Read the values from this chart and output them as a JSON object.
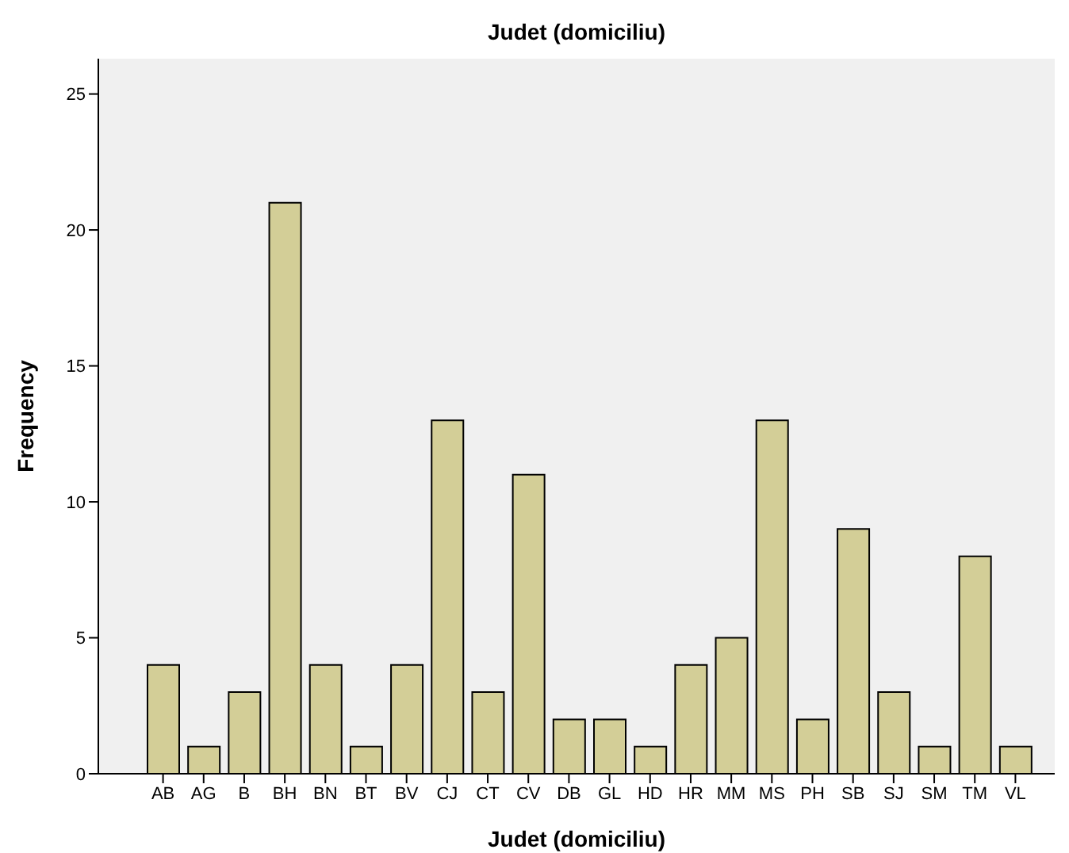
{
  "chart_data": {
    "type": "bar",
    "title": "Judet (domiciliu)",
    "xlabel": "Judet (domiciliu)",
    "ylabel": "Frequency",
    "categories": [
      "AB",
      "AG",
      "B",
      "BH",
      "BN",
      "BT",
      "BV",
      "CJ",
      "CT",
      "CV",
      "DB",
      "GL",
      "HD",
      "HR",
      "MM",
      "MS",
      "PH",
      "SB",
      "SJ",
      "SM",
      "TM",
      "VL"
    ],
    "values": [
      4,
      1,
      3,
      21,
      4,
      1,
      4,
      13,
      3,
      11,
      2,
      2,
      1,
      4,
      5,
      13,
      2,
      9,
      3,
      1,
      8,
      1
    ],
    "color": "#d3ce97",
    "ylim": [
      0,
      26.3
    ],
    "yticks": [
      0,
      5,
      10,
      15,
      20,
      25
    ],
    "grid": false
  }
}
